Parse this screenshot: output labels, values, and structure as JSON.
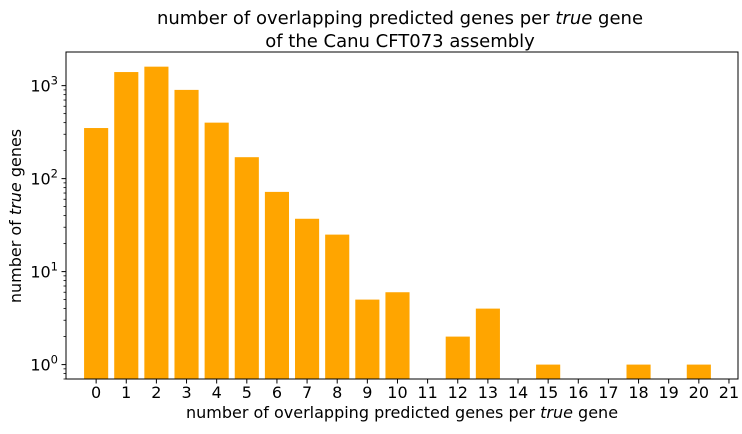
{
  "chart_data": {
    "type": "bar",
    "title_line1_pre": "number of overlapping predicted genes per ",
    "title_line1_em": "true",
    "title_line1_post": " gene",
    "title_line2": "of the Canu CFT073 assembly",
    "xlabel_pre": "number of overlapping predicted genes per ",
    "xlabel_em": "true",
    "xlabel_post": " gene",
    "ylabel_pre": "number of ",
    "ylabel_em": "true",
    "ylabel_post": " genes",
    "yscale": "log",
    "ylim": [
      0.7,
      2300
    ],
    "xlim": [
      -1.0,
      21.3
    ],
    "y_ticks": [
      {
        "value": 1,
        "base": "10",
        "exp": "0"
      },
      {
        "value": 10,
        "base": "10",
        "exp": "1"
      },
      {
        "value": 100,
        "base": "10",
        "exp": "2"
      },
      {
        "value": 1000,
        "base": "10",
        "exp": "3"
      }
    ],
    "x_ticks": [
      "0",
      "1",
      "2",
      "3",
      "4",
      "5",
      "6",
      "7",
      "8",
      "9",
      "10",
      "11",
      "12",
      "13",
      "14",
      "15",
      "16",
      "17",
      "18",
      "19",
      "20",
      "21"
    ],
    "bars": [
      {
        "x": 0,
        "value": 350
      },
      {
        "x": 1,
        "value": 1400
      },
      {
        "x": 2,
        "value": 1600
      },
      {
        "x": 3,
        "value": 900
      },
      {
        "x": 4,
        "value": 400
      },
      {
        "x": 5,
        "value": 170
      },
      {
        "x": 6,
        "value": 72
      },
      {
        "x": 7,
        "value": 37
      },
      {
        "x": 8,
        "value": 25
      },
      {
        "x": 9,
        "value": 5
      },
      {
        "x": 10,
        "value": 6
      },
      {
        "x": 12,
        "value": 2
      },
      {
        "x": 13,
        "value": 4
      },
      {
        "x": 15,
        "value": 1
      },
      {
        "x": 18,
        "value": 1
      },
      {
        "x": 20,
        "value": 1
      }
    ],
    "bar_color": "#ffa500",
    "grid": false,
    "legend": "none"
  }
}
